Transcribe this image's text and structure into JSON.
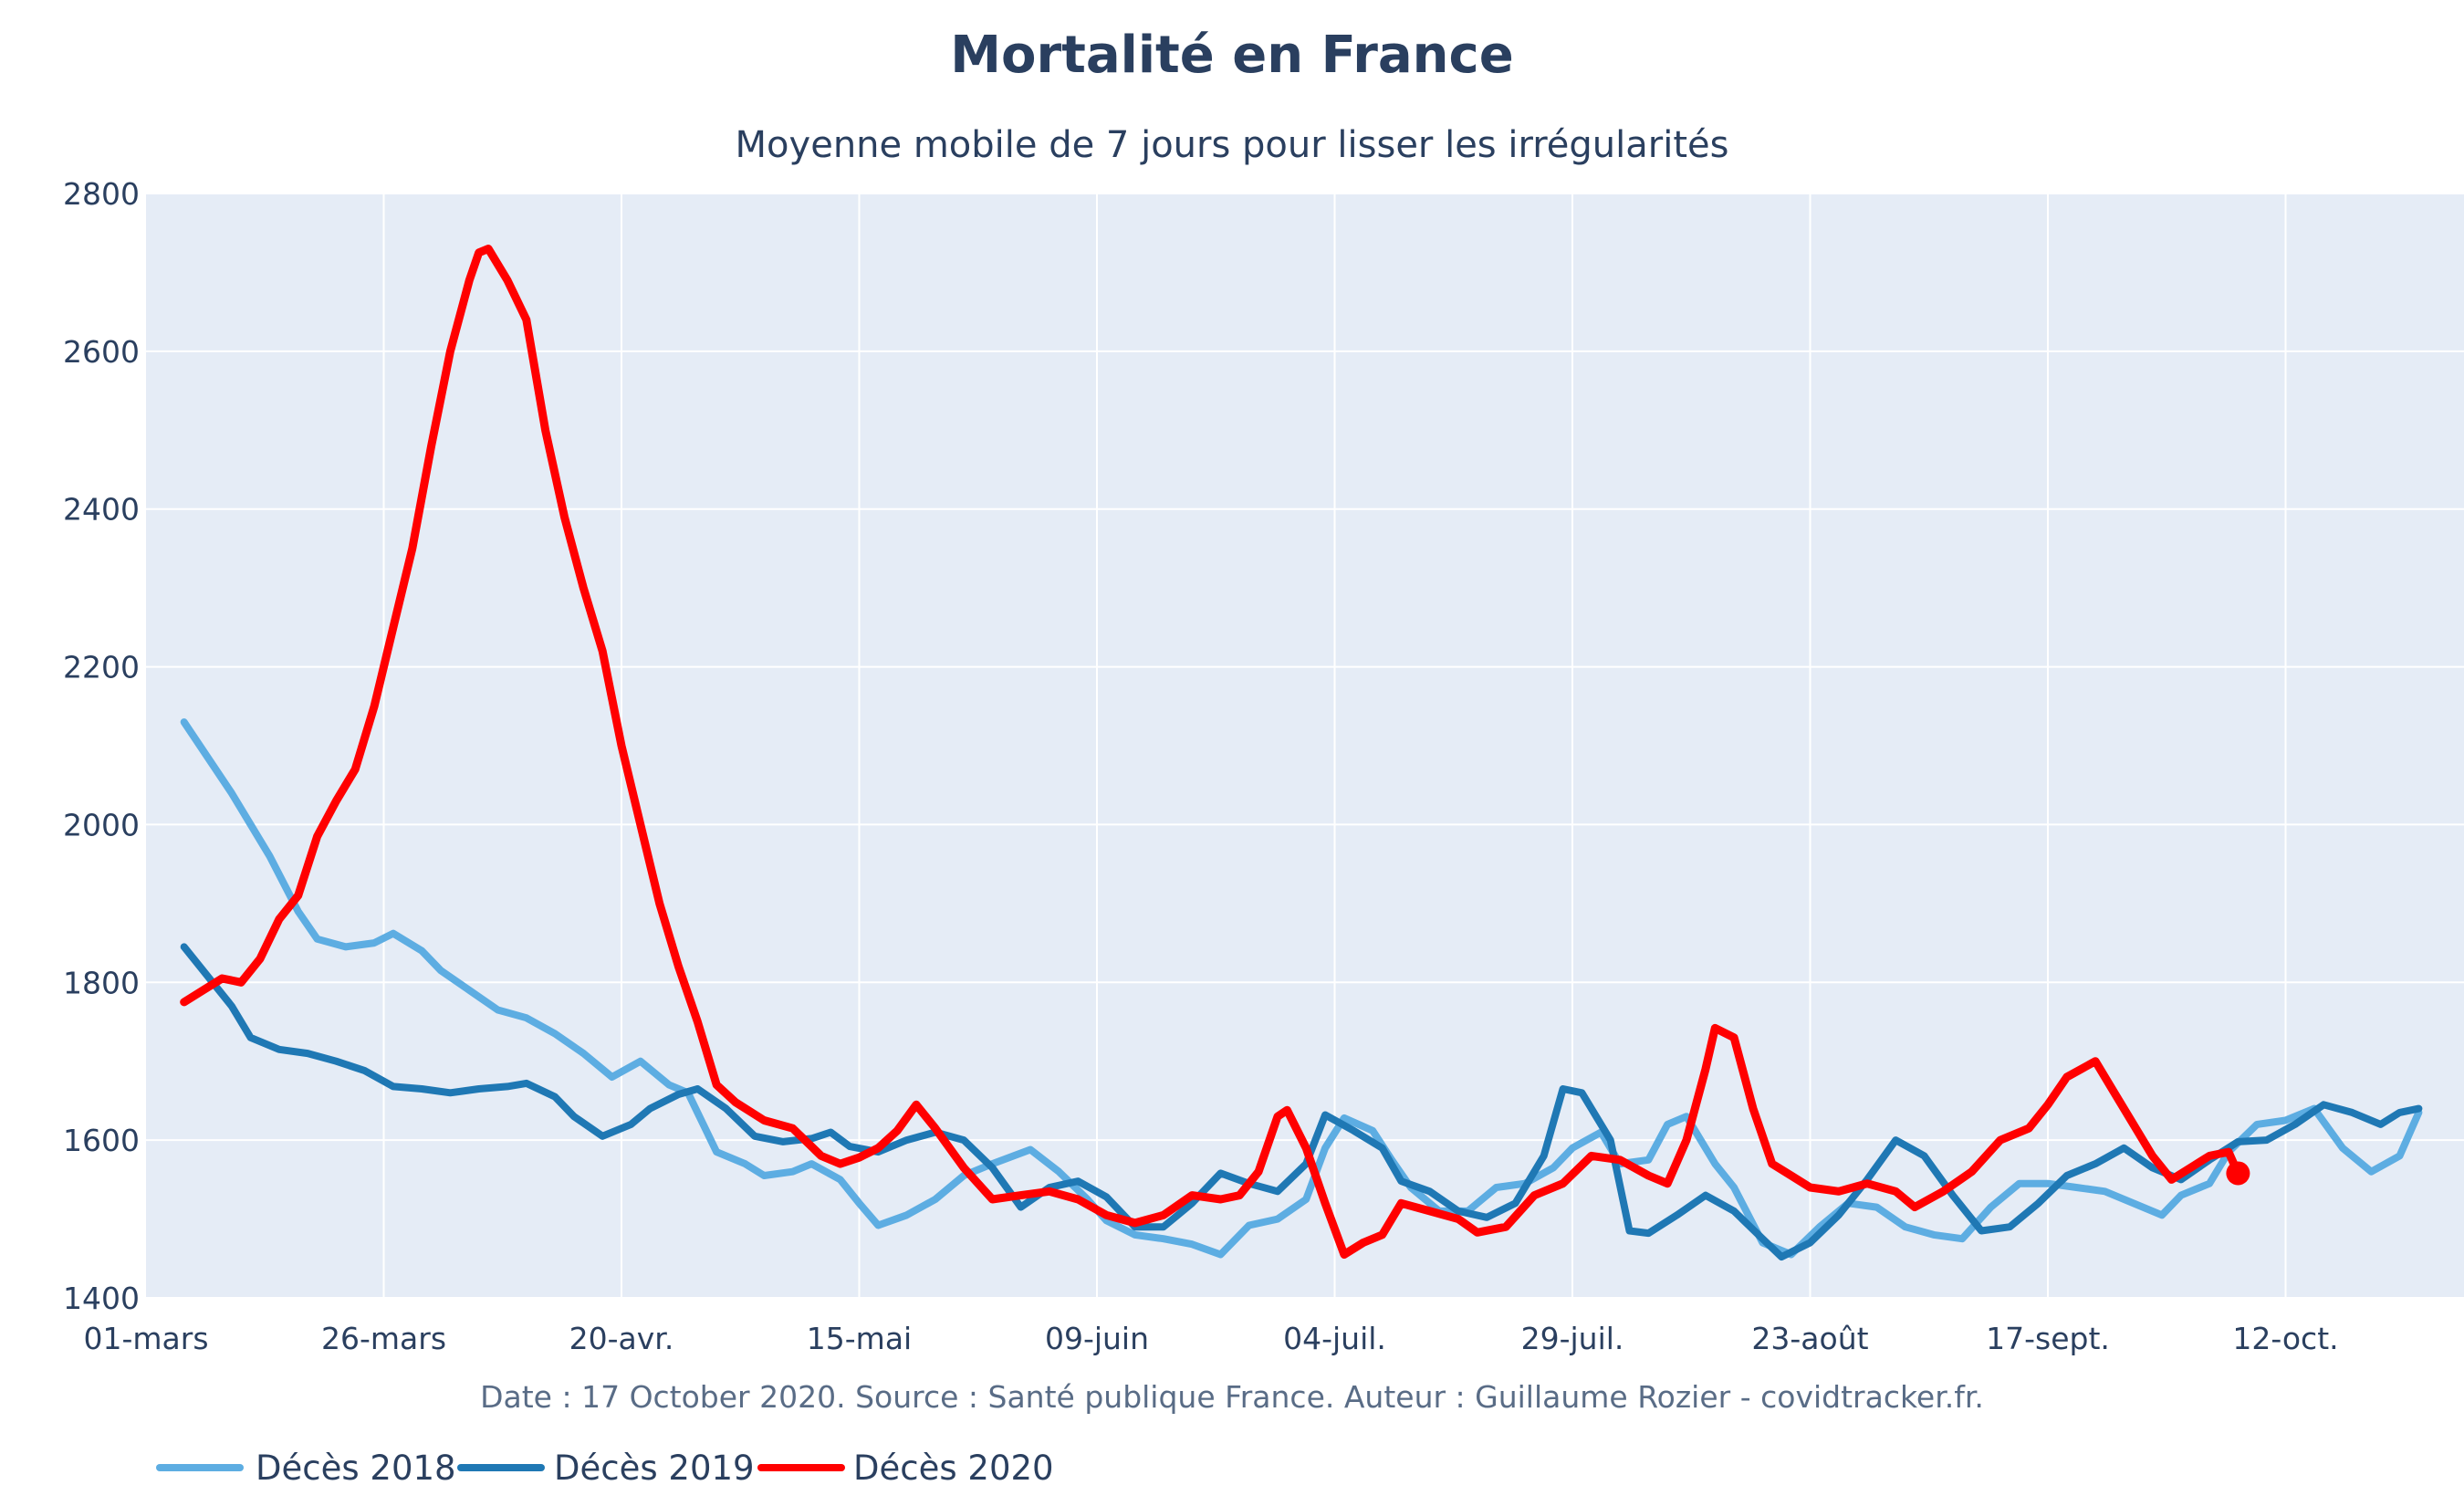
{
  "chart_data": {
    "type": "line",
    "title": "Mortalité en France",
    "subtitle": "Moyenne mobile de 7 jours pour lisser les irrégularités",
    "source": "Date : 17 October 2020. Source : Santé publique France. Auteur : Guillaume Rozier - covidtracker.fr.",
    "xlabel": "",
    "ylabel": "",
    "x_start_label": "01-mars",
    "x_ticks": [
      "01-mars",
      "26-mars",
      "20-avr.",
      "15-mai",
      "09-juin",
      "04-juil.",
      "29-juil.",
      "23-août",
      "17-sept.",
      "12-oct."
    ],
    "y_ticks": [
      1400,
      1600,
      1800,
      2000,
      2200,
      2400,
      2600,
      2800
    ],
    "xlim": [
      "01-mars",
      "26-oct."
    ],
    "ylim": [
      1400,
      2800
    ],
    "grid": true,
    "legend": "bottom-left",
    "background": "#e5ecf6",
    "series": [
      {
        "name": "Décès 2018",
        "color": "#5dade2",
        "points": [
          [
            "05-mars",
            2130
          ],
          [
            "10-mars",
            2040
          ],
          [
            "14-mars",
            1960
          ],
          [
            "17-mars",
            1890
          ],
          [
            "19-mars",
            1855
          ],
          [
            "22-mars",
            1845
          ],
          [
            "25-mars",
            1850
          ],
          [
            "27-mars",
            1862
          ],
          [
            "30-mars",
            1840
          ],
          [
            "01-avr.",
            1815
          ],
          [
            "04-avr.",
            1790
          ],
          [
            "07-avr.",
            1765
          ],
          [
            "10-avr.",
            1755
          ],
          [
            "13-avr.",
            1735
          ],
          [
            "16-avr.",
            1710
          ],
          [
            "19-avr.",
            1680
          ],
          [
            "22-avr.",
            1700
          ],
          [
            "25-avr.",
            1670
          ],
          [
            "27-avr.",
            1660
          ],
          [
            "30-avr.",
            1585
          ],
          [
            "03-mai",
            1570
          ],
          [
            "05-mai",
            1555
          ],
          [
            "08-mai",
            1560
          ],
          [
            "10-mai",
            1570
          ],
          [
            "13-mai",
            1550
          ],
          [
            "15-mai",
            1520
          ],
          [
            "17-mai",
            1492
          ],
          [
            "20-mai",
            1505
          ],
          [
            "23-mai",
            1525
          ],
          [
            "26-mai",
            1555
          ],
          [
            "29-mai",
            1570
          ],
          [
            "02-juin",
            1588
          ],
          [
            "05-juin",
            1560
          ],
          [
            "08-juin",
            1525
          ],
          [
            "10-juin",
            1498
          ],
          [
            "13-juin",
            1480
          ],
          [
            "16-juin",
            1475
          ],
          [
            "19-juin",
            1468
          ],
          [
            "22-juin",
            1455
          ],
          [
            "25-juin",
            1492
          ],
          [
            "28-juin",
            1500
          ],
          [
            "01-juil.",
            1525
          ],
          [
            "03-juil.",
            1590
          ],
          [
            "05-juil.",
            1628
          ],
          [
            "08-juil.",
            1612
          ],
          [
            "10-juil.",
            1575
          ],
          [
            "12-juil.",
            1540
          ],
          [
            "15-juil.",
            1510
          ],
          [
            "18-juil.",
            1510
          ],
          [
            "21-juil.",
            1540
          ],
          [
            "24-juil.",
            1545
          ],
          [
            "27-juil.",
            1565
          ],
          [
            "29-juil.",
            1590
          ],
          [
            "01-août",
            1610
          ],
          [
            "03-août",
            1570
          ],
          [
            "06-août",
            1575
          ],
          [
            "08-août",
            1620
          ],
          [
            "10-août",
            1630
          ],
          [
            "13-août",
            1570
          ],
          [
            "15-août",
            1540
          ],
          [
            "18-août",
            1470
          ],
          [
            "21-août",
            1455
          ],
          [
            "24-août",
            1490
          ],
          [
            "27-août",
            1520
          ],
          [
            "30-août",
            1515
          ],
          [
            "02-sept.",
            1490
          ],
          [
            "05-sept.",
            1480
          ],
          [
            "08-sept.",
            1475
          ],
          [
            "11-sept.",
            1515
          ],
          [
            "14-sept.",
            1545
          ],
          [
            "17-sept.",
            1545
          ],
          [
            "20-sept.",
            1540
          ],
          [
            "23-sept.",
            1535
          ],
          [
            "26-sept.",
            1520
          ],
          [
            "29-sept.",
            1505
          ],
          [
            "01-oct.",
            1530
          ],
          [
            "04-oct.",
            1545
          ],
          [
            "06-oct.",
            1585
          ],
          [
            "09-oct.",
            1620
          ],
          [
            "12-oct.",
            1625
          ],
          [
            "15-oct.",
            1640
          ],
          [
            "18-oct.",
            1590
          ],
          [
            "21-oct.",
            1560
          ],
          [
            "24-oct.",
            1580
          ],
          [
            "26-oct.",
            1635
          ]
        ]
      },
      {
        "name": "Décès 2019",
        "color": "#1f78b4",
        "points": [
          [
            "05-mars",
            1845
          ],
          [
            "07-mars",
            1815
          ],
          [
            "10-mars",
            1770
          ],
          [
            "12-mars",
            1730
          ],
          [
            "15-mars",
            1715
          ],
          [
            "18-mars",
            1710
          ],
          [
            "21-mars",
            1700
          ],
          [
            "24-mars",
            1688
          ],
          [
            "27-mars",
            1668
          ],
          [
            "30-mars",
            1665
          ],
          [
            "02-avr.",
            1660
          ],
          [
            "05-avr.",
            1665
          ],
          [
            "08-avr.",
            1668
          ],
          [
            "10-avr.",
            1672
          ],
          [
            "13-avr.",
            1655
          ],
          [
            "15-avr.",
            1630
          ],
          [
            "18-avr.",
            1605
          ],
          [
            "21-avr.",
            1620
          ],
          [
            "23-avr.",
            1640
          ],
          [
            "26-avr.",
            1658
          ],
          [
            "28-avr.",
            1665
          ],
          [
            "01-mai",
            1640
          ],
          [
            "04-mai",
            1605
          ],
          [
            "07-mai",
            1598
          ],
          [
            "10-mai",
            1602
          ],
          [
            "12-mai",
            1610
          ],
          [
            "14-mai",
            1592
          ],
          [
            "17-mai",
            1585
          ],
          [
            "20-mai",
            1600
          ],
          [
            "23-mai",
            1610
          ],
          [
            "26-mai",
            1600
          ],
          [
            "29-mai",
            1565
          ],
          [
            "01-juin",
            1515
          ],
          [
            "04-juin",
            1540
          ],
          [
            "07-juin",
            1548
          ],
          [
            "10-juin",
            1528
          ],
          [
            "13-juin",
            1490
          ],
          [
            "16-juin",
            1490
          ],
          [
            "19-juin",
            1520
          ],
          [
            "22-juin",
            1558
          ],
          [
            "25-juin",
            1545
          ],
          [
            "28-juin",
            1535
          ],
          [
            "01-juil.",
            1570
          ],
          [
            "03-juil.",
            1632
          ],
          [
            "06-juil.",
            1612
          ],
          [
            "09-juil.",
            1590
          ],
          [
            "11-juil.",
            1548
          ],
          [
            "14-juil.",
            1535
          ],
          [
            "17-juil.",
            1510
          ],
          [
            "20-juil.",
            1502
          ],
          [
            "23-juil.",
            1520
          ],
          [
            "26-juil.",
            1580
          ],
          [
            "28-juil.",
            1665
          ],
          [
            "30-juil.",
            1660
          ],
          [
            "02-août",
            1600
          ],
          [
            "04-août",
            1485
          ],
          [
            "06-août",
            1482
          ],
          [
            "09-août",
            1505
          ],
          [
            "12-août",
            1530
          ],
          [
            "15-août",
            1510
          ],
          [
            "18-août",
            1475
          ],
          [
            "20-août",
            1452
          ],
          [
            "23-août",
            1470
          ],
          [
            "26-août",
            1505
          ],
          [
            "29-août",
            1550
          ],
          [
            "01-sept.",
            1600
          ],
          [
            "04-sept.",
            1580
          ],
          [
            "07-sept.",
            1530
          ],
          [
            "10-sept.",
            1485
          ],
          [
            "13-sept.",
            1490
          ],
          [
            "16-sept.",
            1520
          ],
          [
            "19-sept.",
            1555
          ],
          [
            "22-sept.",
            1570
          ],
          [
            "25-sept.",
            1590
          ],
          [
            "28-sept.",
            1565
          ],
          [
            "01-oct.",
            1550
          ],
          [
            "04-oct.",
            1575
          ],
          [
            "07-oct.",
            1598
          ],
          [
            "10-oct.",
            1600
          ],
          [
            "13-oct.",
            1620
          ],
          [
            "16-oct.",
            1645
          ],
          [
            "19-oct.",
            1635
          ],
          [
            "22-oct.",
            1620
          ],
          [
            "24-oct.",
            1635
          ],
          [
            "26-oct.",
            1640
          ]
        ]
      },
      {
        "name": "Décès 2020",
        "color": "#ff0000",
        "points": [
          [
            "05-mars",
            1775
          ],
          [
            "07-mars",
            1790
          ],
          [
            "09-mars",
            1805
          ],
          [
            "11-mars",
            1800
          ],
          [
            "13-mars",
            1830
          ],
          [
            "15-mars",
            1880
          ],
          [
            "17-mars",
            1910
          ],
          [
            "19-mars",
            1985
          ],
          [
            "21-mars",
            2030
          ],
          [
            "23-mars",
            2070
          ],
          [
            "25-mars",
            2150
          ],
          [
            "27-mars",
            2250
          ],
          [
            "29-mars",
            2350
          ],
          [
            "31-mars",
            2480
          ],
          [
            "02-avr.",
            2600
          ],
          [
            "04-avr.",
            2690
          ],
          [
            "05-avr.",
            2725
          ],
          [
            "06-avr.",
            2730
          ],
          [
            "08-avr.",
            2690
          ],
          [
            "10-avr.",
            2640
          ],
          [
            "12-avr.",
            2500
          ],
          [
            "14-avr.",
            2390
          ],
          [
            "16-avr.",
            2300
          ],
          [
            "18-avr.",
            2220
          ],
          [
            "20-avr.",
            2100
          ],
          [
            "22-avr.",
            2000
          ],
          [
            "24-avr.",
            1900
          ],
          [
            "26-avr.",
            1820
          ],
          [
            "28-avr.",
            1750
          ],
          [
            "30-avr.",
            1670
          ],
          [
            "02-mai",
            1648
          ],
          [
            "05-mai",
            1625
          ],
          [
            "08-mai",
            1615
          ],
          [
            "11-mai",
            1580
          ],
          [
            "13-mai",
            1570
          ],
          [
            "15-mai",
            1578
          ],
          [
            "17-mai",
            1590
          ],
          [
            "19-mai",
            1612
          ],
          [
            "21-mai",
            1645
          ],
          [
            "23-mai",
            1615
          ],
          [
            "26-mai",
            1565
          ],
          [
            "29-mai",
            1525
          ],
          [
            "01-juin",
            1530
          ],
          [
            "04-juin",
            1535
          ],
          [
            "07-juin",
            1525
          ],
          [
            "10-juin",
            1505
          ],
          [
            "13-juin",
            1495
          ],
          [
            "16-juin",
            1505
          ],
          [
            "19-juin",
            1530
          ],
          [
            "22-juin",
            1525
          ],
          [
            "24-juin",
            1530
          ],
          [
            "26-juin",
            1560
          ],
          [
            "28-juin",
            1630
          ],
          [
            "29-juin",
            1638
          ],
          [
            "01-juil.",
            1590
          ],
          [
            "03-juil.",
            1520
          ],
          [
            "05-juil.",
            1455
          ],
          [
            "07-juil.",
            1470
          ],
          [
            "09-juil.",
            1480
          ],
          [
            "11-juil.",
            1520
          ],
          [
            "14-juil.",
            1510
          ],
          [
            "17-juil.",
            1500
          ],
          [
            "19-juil.",
            1483
          ],
          [
            "22-juil.",
            1490
          ],
          [
            "25-juil.",
            1530
          ],
          [
            "28-juil.",
            1545
          ],
          [
            "31-juil.",
            1580
          ],
          [
            "03-août",
            1575
          ],
          [
            "06-août",
            1555
          ],
          [
            "08-août",
            1545
          ],
          [
            "10-août",
            1600
          ],
          [
            "12-août",
            1690
          ],
          [
            "13-août",
            1742
          ],
          [
            "15-août",
            1730
          ],
          [
            "17-août",
            1640
          ],
          [
            "19-août",
            1570
          ],
          [
            "21-août",
            1555
          ],
          [
            "23-août",
            1540
          ],
          [
            "26-août",
            1535
          ],
          [
            "29-août",
            1545
          ],
          [
            "01-sept.",
            1535
          ],
          [
            "03-sept.",
            1515
          ],
          [
            "06-sept.",
            1535
          ],
          [
            "09-sept.",
            1560
          ],
          [
            "12-sept.",
            1600
          ],
          [
            "15-sept.",
            1615
          ],
          [
            "17-sept.",
            1645
          ],
          [
            "19-sept.",
            1680
          ],
          [
            "22-sept.",
            1700
          ],
          [
            "24-sept.",
            1660
          ],
          [
            "26-sept.",
            1620
          ],
          [
            "28-sept.",
            1580
          ],
          [
            "30-sept.",
            1550
          ],
          [
            "02-oct.",
            1565
          ],
          [
            "04-oct.",
            1580
          ],
          [
            "06-oct.",
            1585
          ],
          [
            "07-oct.",
            1558
          ]
        ]
      }
    ]
  }
}
